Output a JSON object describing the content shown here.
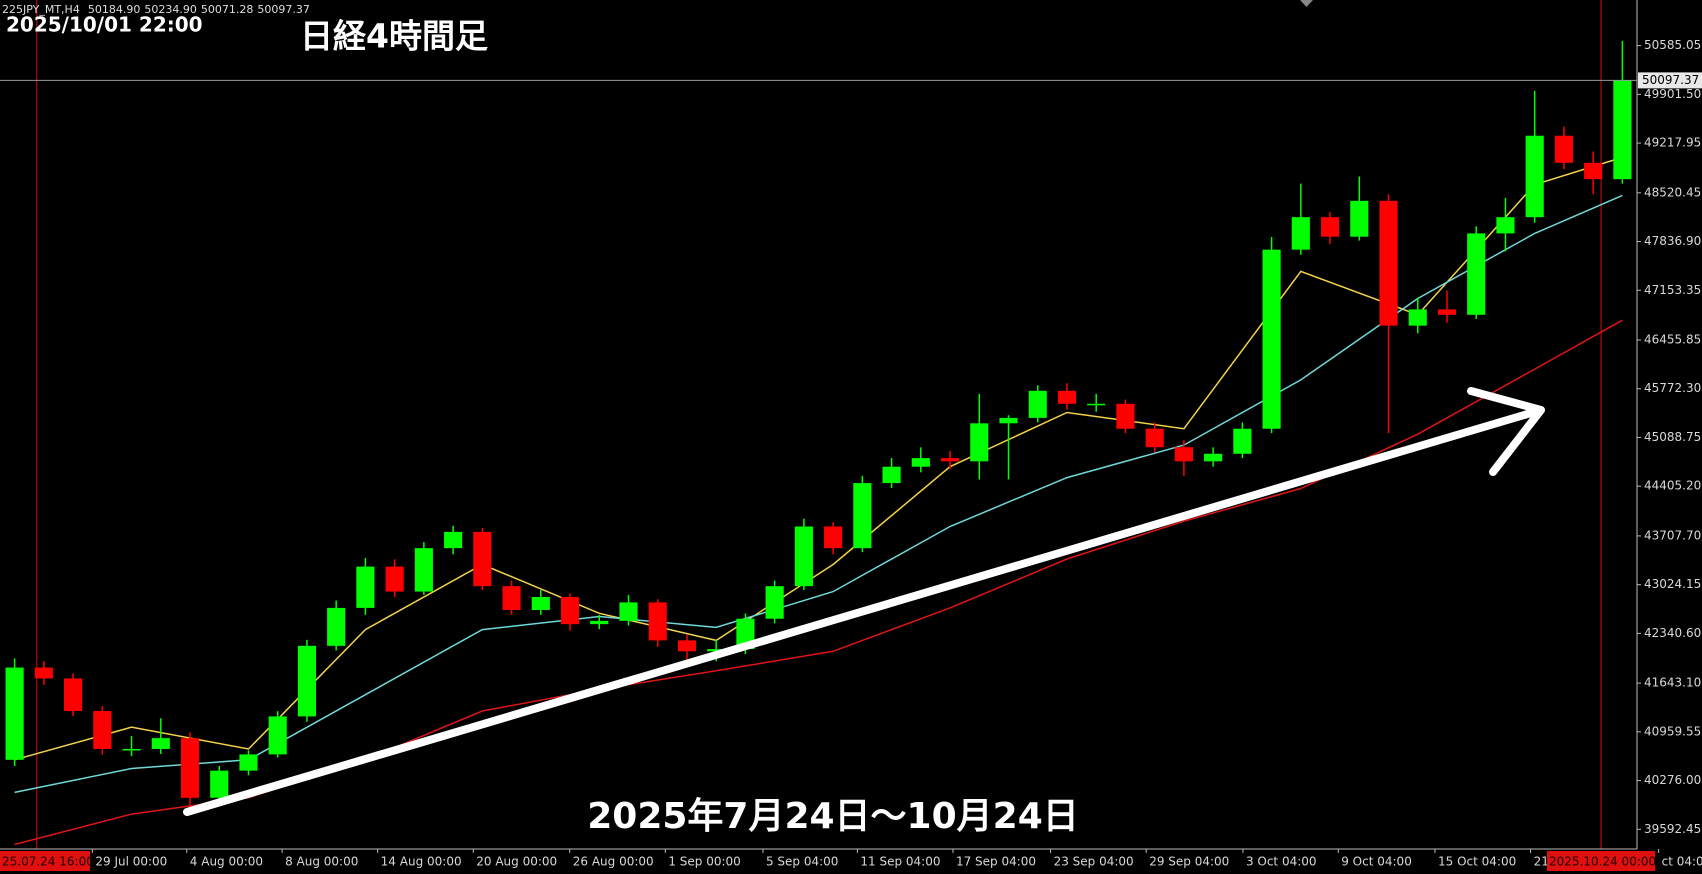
{
  "chart_data": {
    "type": "candlestick",
    "title": "日経4時間足",
    "symbol": "225JPY_MT,H4",
    "info_values": [
      "50184.90",
      "50234.90",
      "50071.28",
      "50097.37"
    ],
    "annotations": [
      "2025/10/01 22:00",
      "2025年7月24日～10月24日"
    ],
    "up_color": "#00ff00",
    "down_color": "#ff0000",
    "xlim": [
      0,
      56
    ],
    "ylim": [
      39316,
      51225
    ],
    "yticks": [
      50585.05,
      {
        "value": 49901.5,
        "label": "49901.50"
      },
      49217.95,
      48520.45,
      {
        "value": 47836.9,
        "label": "47836.90"
      },
      47153.35,
      46455.85,
      {
        "value": 45772.3,
        "label": "45772.30"
      },
      45088.75,
      {
        "value": 44405.2,
        "label": "44405.20"
      },
      {
        "value": 43707.7,
        "label": "43707.70"
      },
      43024.15,
      {
        "value": 42340.6,
        "label": "42340.60"
      },
      {
        "value": 41643.1,
        "label": "41643.10"
      },
      40959.55,
      {
        "value": 40276,
        "label": "40276.00"
      },
      39592.45
    ],
    "xticks": [
      {
        "value": 3.16,
        "label": "29 Jul 00:00"
      },
      {
        "value": 6.39,
        "label": "4 Aug 00:00"
      },
      {
        "value": 9.65,
        "label": "8 Aug 00:00"
      },
      {
        "value": 12.92,
        "label": "14 Aug 00:00"
      },
      {
        "value": 16.19,
        "label": "20 Aug 00:00"
      },
      {
        "value": 19.49,
        "label": "26 Aug 00:00"
      },
      {
        "value": 22.76,
        "label": "1 Sep 00:00"
      },
      {
        "value": 26.1,
        "label": "5 Sep 04:00"
      },
      {
        "value": 29.33,
        "label": "11 Sep 04:00"
      },
      {
        "value": 32.6,
        "label": "17 Sep 04:00"
      },
      {
        "value": 35.94,
        "label": "23 Sep 04:00"
      },
      {
        "value": 39.21,
        "label": "29 Sep 04:00"
      },
      {
        "value": 42.52,
        "label": "3 Oct 04:00"
      },
      {
        "value": 45.78,
        "label": "9 Oct 04:00"
      },
      {
        "value": 49.09,
        "label": "15 Oct 04:00"
      },
      {
        "value": 52.36,
        "label": "21 Oct 04:00"
      },
      {
        "value": 56.74,
        "label": "ct 04:00"
      }
    ],
    "cursors": [
      {
        "value": 1.26,
        "label": "25.07.24 16:00"
      },
      {
        "value": 54.77,
        "label": "2025.10.24 00:00"
      }
    ],
    "current_price": 50097.37,
    "candles": [
      [
        40567,
        41990,
        40480,
        41861
      ],
      [
        41861,
        41950,
        41620,
        41709
      ],
      [
        41709,
        41780,
        41180,
        41252
      ],
      [
        41252,
        41320,
        40640,
        40719
      ],
      [
        40719,
        40900,
        40620,
        40719
      ],
      [
        40719,
        41150,
        40650,
        40871
      ],
      [
        40871,
        40950,
        39900,
        40034
      ],
      [
        40034,
        40480,
        39950,
        40415
      ],
      [
        40415,
        40700,
        40350,
        40643
      ],
      [
        40643,
        41250,
        40600,
        41176
      ],
      [
        41176,
        42250,
        41100,
        42166
      ],
      [
        42166,
        42800,
        42100,
        42698
      ],
      [
        42698,
        43400,
        42600,
        43277
      ],
      [
        43277,
        43380,
        42850,
        42927
      ],
      [
        42927,
        43620,
        42880,
        43536
      ],
      [
        43536,
        43850,
        43450,
        43764
      ],
      [
        43764,
        43820,
        42950,
        43003
      ],
      [
        43003,
        43080,
        42600,
        42668
      ],
      [
        42668,
        42950,
        42600,
        42851
      ],
      [
        42851,
        42900,
        42380,
        42470
      ],
      [
        42470,
        42600,
        42400,
        42516
      ],
      [
        42516,
        42880,
        42450,
        42775
      ],
      [
        42775,
        42820,
        42150,
        42242
      ],
      [
        42242,
        42320,
        41900,
        42089
      ],
      [
        42089,
        42250,
        41950,
        42120
      ],
      [
        42120,
        42620,
        42050,
        42546
      ],
      [
        42546,
        43080,
        42480,
        43003
      ],
      [
        43003,
        43950,
        42950,
        43840
      ],
      [
        43840,
        43900,
        43450,
        43536
      ],
      [
        43536,
        44550,
        43480,
        44449
      ],
      [
        44449,
        44800,
        44380,
        44678
      ],
      [
        44678,
        44950,
        44600,
        44799
      ],
      [
        44799,
        44900,
        44650,
        44754
      ],
      [
        44754,
        45700,
        44500,
        45287
      ],
      [
        45287,
        45400,
        44500,
        45363
      ],
      [
        45363,
        45820,
        45300,
        45743
      ],
      [
        45743,
        45850,
        45480,
        45561
      ],
      [
        45561,
        45700,
        45450,
        45561
      ],
      [
        45561,
        45620,
        45150,
        45211
      ],
      [
        45211,
        45300,
        44880,
        44952
      ],
      [
        44952,
        45050,
        44550,
        44754
      ],
      [
        44754,
        44950,
        44680,
        44860
      ],
      [
        44860,
        45300,
        44800,
        45211
      ],
      [
        45211,
        47900,
        45150,
        47723
      ],
      [
        47723,
        48650,
        47650,
        48179
      ],
      [
        48179,
        48250,
        47800,
        47905
      ],
      [
        47905,
        48750,
        47850,
        48408
      ],
      [
        48408,
        48500,
        45150,
        46657
      ],
      [
        46657,
        47050,
        46550,
        46885
      ],
      [
        46885,
        47150,
        46700,
        46809
      ],
      [
        46809,
        48050,
        46750,
        47951
      ],
      [
        47951,
        48450,
        47700,
        48179
      ],
      [
        48179,
        49950,
        48100,
        49321
      ],
      [
        49321,
        49450,
        48850,
        48941
      ],
      [
        48941,
        49100,
        48500,
        48712
      ],
      [
        48712,
        50650,
        48650,
        50097.37
      ]
    ],
    "series": [
      {
        "color": "#f2d24b",
        "x": [
          0.5,
          4.5,
          8.5,
          12.5,
          16.5,
          20.5,
          24.5,
          28.5,
          32.5,
          36.5,
          40.5,
          44.5,
          48.5,
          52.5,
          55.5
        ],
        "values": [
          40567,
          41024,
          40719,
          42394,
          43307,
          42622,
          42242,
          43307,
          44678,
          45439,
          45211,
          47418,
          46809,
          48636,
          49017
        ]
      },
      {
        "color": "#6fd8d8",
        "x": [
          0.5,
          4.5,
          8.5,
          12.5,
          16.5,
          20.5,
          24.5,
          28.5,
          32.5,
          36.5,
          40.5,
          44.5,
          48.5,
          52.5,
          55.5
        ],
        "values": [
          40110,
          40445,
          40567,
          41480,
          42394,
          42577,
          42424,
          42927,
          43840,
          44525,
          44982,
          45896,
          47038,
          47951,
          48484
        ]
      },
      {
        "color": "#e01515",
        "x": [
          0.5,
          4.5,
          8.5,
          12.5,
          16.5,
          20.5,
          24.5,
          28.5,
          32.5,
          36.5,
          40.5,
          44.5,
          48.5,
          52.5,
          55.5
        ],
        "values": [
          39379,
          39806,
          40034,
          40567,
          41252,
          41557,
          41815,
          42089,
          42698,
          43384,
          43916,
          44373,
          45134,
          46048,
          46733
        ]
      }
    ]
  }
}
